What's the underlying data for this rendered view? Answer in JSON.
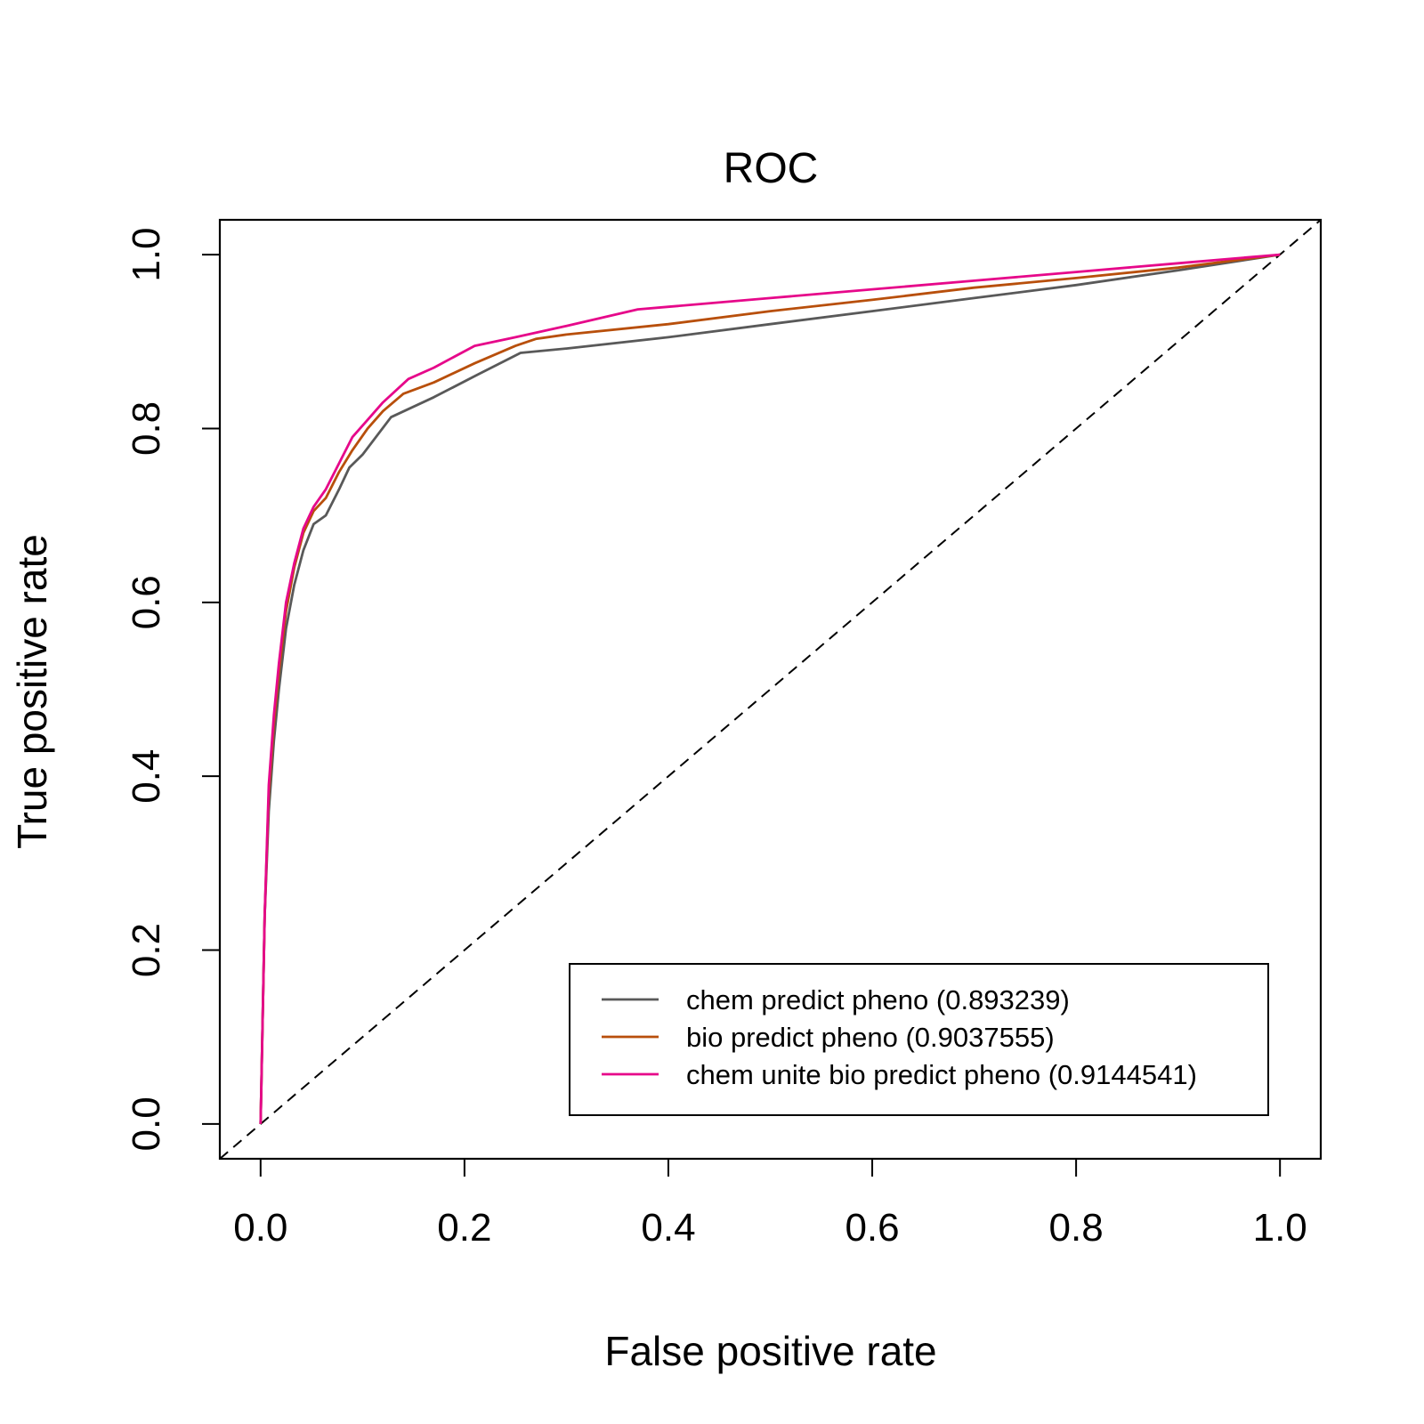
{
  "chart_data": {
    "type": "line",
    "title": "ROC",
    "xlabel": "False positive rate",
    "ylabel": "True positive rate",
    "xlim": [
      -0.04,
      1.04
    ],
    "ylim": [
      -0.04,
      1.04
    ],
    "x_ticks": [
      0.0,
      0.2,
      0.4,
      0.6,
      0.8,
      1.0
    ],
    "x_tick_labels": [
      "0.0",
      "0.2",
      "0.4",
      "0.6",
      "0.8",
      "1.0"
    ],
    "y_ticks": [
      0.0,
      0.2,
      0.4,
      0.6,
      0.8,
      1.0
    ],
    "y_tick_labels": [
      "0.0",
      "0.2",
      "0.4",
      "0.6",
      "0.8",
      "1.0"
    ],
    "grid": false,
    "legend_position": "bottom-right",
    "reference_line": {
      "x": [
        0,
        1
      ],
      "y": [
        0,
        1
      ],
      "style": "dashed",
      "color": "#000000"
    },
    "series": [
      {
        "name": "chem predict pheno (0.893239)",
        "color": "#595959",
        "x": [
          0,
          0.004,
          0.008,
          0.013,
          0.018,
          0.025,
          0.033,
          0.042,
          0.052,
          0.064,
          0.077,
          0.087,
          0.1,
          0.128,
          0.17,
          0.213,
          0.255,
          0.3,
          0.4,
          0.5,
          0.6,
          0.7,
          0.8,
          0.9,
          1.0
        ],
        "y": [
          0,
          0.24,
          0.36,
          0.44,
          0.5,
          0.57,
          0.62,
          0.66,
          0.69,
          0.7,
          0.73,
          0.755,
          0.77,
          0.813,
          0.836,
          0.862,
          0.887,
          0.892,
          0.905,
          0.92,
          0.935,
          0.95,
          0.965,
          0.982,
          1.0
        ]
      },
      {
        "name": "bio predict pheno (0.9037555)",
        "color": "#B84F0B",
        "x": [
          0,
          0.004,
          0.008,
          0.013,
          0.018,
          0.025,
          0.033,
          0.042,
          0.052,
          0.064,
          0.077,
          0.09,
          0.105,
          0.12,
          0.14,
          0.17,
          0.21,
          0.25,
          0.27,
          0.3,
          0.4,
          0.5,
          0.6,
          0.7,
          0.8,
          0.9,
          1.0
        ],
        "y": [
          0,
          0.24,
          0.38,
          0.46,
          0.52,
          0.59,
          0.64,
          0.68,
          0.705,
          0.72,
          0.75,
          0.775,
          0.8,
          0.82,
          0.84,
          0.853,
          0.875,
          0.895,
          0.903,
          0.908,
          0.92,
          0.935,
          0.948,
          0.962,
          0.973,
          0.985,
          1.0
        ]
      },
      {
        "name": "chem unite bio predict pheno (0.9144541)",
        "color": "#E6088A",
        "x": [
          0,
          0.004,
          0.008,
          0.013,
          0.018,
          0.025,
          0.033,
          0.042,
          0.052,
          0.064,
          0.077,
          0.09,
          0.105,
          0.12,
          0.145,
          0.17,
          0.21,
          0.25,
          0.3,
          0.37,
          0.4,
          0.5,
          0.6,
          0.7,
          0.8,
          0.9,
          1.0
        ],
        "y": [
          0,
          0.24,
          0.39,
          0.47,
          0.53,
          0.6,
          0.645,
          0.685,
          0.71,
          0.73,
          0.76,
          0.79,
          0.81,
          0.83,
          0.857,
          0.87,
          0.895,
          0.905,
          0.918,
          0.937,
          0.94,
          0.95,
          0.96,
          0.97,
          0.98,
          0.99,
          1.0
        ]
      }
    ]
  }
}
